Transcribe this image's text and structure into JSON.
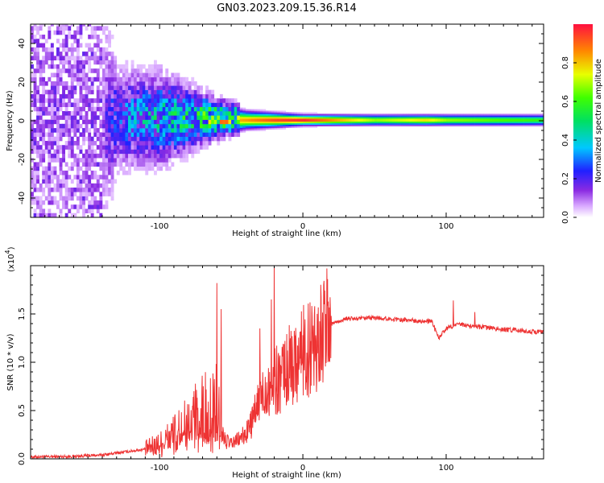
{
  "title": "GN03.2023.209.15.36.R14",
  "colors": {
    "snr_line": "#ee3333",
    "axes": "#000000",
    "background": "#ffffff"
  },
  "chart_data": [
    {
      "type": "heatmap",
      "xlabel": "Height of straight line (km)",
      "ylabel": "Frequency (Hz)",
      "xlim": [
        -190,
        168
      ],
      "ylim": [
        -50,
        50
      ],
      "x_ticks": [
        -100,
        0,
        100
      ],
      "y_ticks": [
        -40,
        -20,
        0,
        20,
        40
      ],
      "colorbar": {
        "label": "Normalized spectral amplitude",
        "range": [
          0,
          1
        ],
        "ticks": [
          "0.0",
          "0.2",
          "0.4",
          "0.6",
          "0.8"
        ],
        "colormap": "rainbow (white-violet-blue-cyan-green-yellow-red)"
      },
      "description_points": [
        {
          "x": -190,
          "spread_hz": 50,
          "peak_amp": 0.15
        },
        {
          "x": -140,
          "spread_hz": 50,
          "peak_amp": 0.15
        },
        {
          "x": -130,
          "spread_hz": 22,
          "peak_amp": 0.3
        },
        {
          "x": -100,
          "spread_hz": 20,
          "peak_amp": 0.45
        },
        {
          "x": -80,
          "spread_hz": 14,
          "peak_amp": 0.5
        },
        {
          "x": -60,
          "spread_hz": 8,
          "peak_amp": 0.75
        },
        {
          "x": -40,
          "spread_hz": 5,
          "peak_amp": 0.85
        },
        {
          "x": -20,
          "spread_hz": 4,
          "peak_amp": 0.95
        },
        {
          "x": 0,
          "spread_hz": 3,
          "peak_amp": 1.0
        },
        {
          "x": 50,
          "spread_hz": 3,
          "peak_amp": 0.7
        },
        {
          "x": 85,
          "spread_hz": 3,
          "peak_amp": 0.8
        },
        {
          "x": 100,
          "spread_hz": 3,
          "peak_amp": 0.7
        },
        {
          "x": 168,
          "spread_hz": 3,
          "peak_amp": 0.6
        }
      ]
    },
    {
      "type": "line",
      "xlabel": "Height of straight line (km)",
      "ylabel": "SNR (10 * v/v)",
      "y_multiplier_label": "(x10",
      "y_multiplier_exp": "4",
      "xlim": [
        -190,
        168
      ],
      "ylim": [
        0,
        20000
      ],
      "x_ticks": [
        -100,
        0,
        100
      ],
      "y_ticks": [
        "0.0",
        "0.5",
        "1.0",
        "1.5"
      ],
      "series": [
        {
          "x": [
            -190,
            -160,
            -140,
            -130,
            -120,
            -110,
            -100,
            -90,
            -80,
            -75,
            -70,
            -65,
            -60,
            -55,
            -50,
            -45,
            -40,
            -35,
            -30,
            -25,
            -20,
            -15,
            -10,
            -5,
            0,
            5,
            10,
            15,
            20,
            30,
            40,
            50,
            60,
            70,
            80,
            90,
            95,
            100,
            105,
            110,
            120,
            140,
            168
          ],
          "y": [
            200,
            250,
            400,
            600,
            800,
            1000,
            1500,
            2500,
            3500,
            4500,
            5000,
            5500,
            6000,
            2000,
            1500,
            2000,
            2500,
            4000,
            6000,
            7500,
            8000,
            8500,
            9500,
            10500,
            11000,
            11500,
            12500,
            13500,
            14000,
            14500,
            14500,
            14600,
            14500,
            14400,
            14300,
            14200,
            12500,
            13500,
            13800,
            13900,
            13700,
            13400,
            13100
          ]
        }
      ],
      "spikes": [
        {
          "x": -60,
          "y": 18200
        },
        {
          "x": -57,
          "y": 15500
        },
        {
          "x": -20,
          "y": 20000
        },
        {
          "x": -22,
          "y": 16500
        },
        {
          "x": -30,
          "y": 13500
        },
        {
          "x": 5,
          "y": 16200
        },
        {
          "x": 15,
          "y": 16000
        },
        {
          "x": 105,
          "y": 16400
        },
        {
          "x": 120,
          "y": 15200
        }
      ]
    }
  ]
}
